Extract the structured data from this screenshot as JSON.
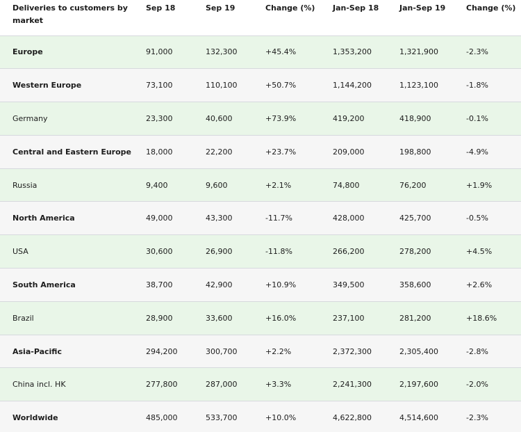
{
  "table": {
    "headers": [
      "Deliveries to customers by market",
      "Sep 18",
      "Sep 19",
      "Change (%)",
      "Jan-Sep 18",
      "Jan-Sep 19",
      "Change (%)"
    ],
    "rows": [
      {
        "market": "Europe",
        "bold": true,
        "cells": [
          "91,000",
          "132,300",
          "+45.4%",
          "1,353,200",
          "1,321,900",
          "-2.3%"
        ]
      },
      {
        "market": "Western Europe",
        "bold": true,
        "cells": [
          "73,100",
          "110,100",
          "+50.7%",
          "1,144,200",
          "1,123,100",
          "-1.8%"
        ]
      },
      {
        "market": "Germany",
        "bold": false,
        "cells": [
          "23,300",
          "40,600",
          "+73.9%",
          "419,200",
          "418,900",
          "-0.1%"
        ]
      },
      {
        "market": "Central and Eastern Europe",
        "bold": true,
        "cells": [
          "18,000",
          "22,200",
          "+23.7%",
          "209,000",
          "198,800",
          "-4.9%"
        ]
      },
      {
        "market": "Russia",
        "bold": false,
        "cells": [
          "9,400",
          "9,600",
          "+2.1%",
          "74,800",
          "76,200",
          "+1.9%"
        ]
      },
      {
        "market": "North America",
        "bold": true,
        "cells": [
          "49,000",
          "43,300",
          "-11.7%",
          "428,000",
          "425,700",
          "-0.5%"
        ]
      },
      {
        "market": "USA",
        "bold": false,
        "cells": [
          "30,600",
          "26,900",
          "-11.8%",
          "266,200",
          "278,200",
          "+4.5%"
        ]
      },
      {
        "market": "South America",
        "bold": true,
        "cells": [
          "38,700",
          "42,900",
          "+10.9%",
          "349,500",
          "358,600",
          "+2.6%"
        ]
      },
      {
        "market": "Brazil",
        "bold": false,
        "cells": [
          "28,900",
          "33,600",
          "+16.0%",
          "237,100",
          "281,200",
          "+18.6%"
        ]
      },
      {
        "market": "Asia-Pacific",
        "bold": true,
        "cells": [
          "294,200",
          "300,700",
          "+2.2%",
          "2,372,300",
          "2,305,400",
          "-2.8%"
        ]
      },
      {
        "market": "China incl. HK",
        "bold": false,
        "cells": [
          "277,800",
          "287,000",
          "+3.3%",
          "2,241,300",
          "2,197,600",
          "-2.0%"
        ]
      },
      {
        "market": "Worldwide",
        "bold": true,
        "cells": [
          "485,000",
          "533,700",
          "+10.0%",
          "4,622,800",
          "4,514,600",
          "-2.3%"
        ]
      }
    ]
  },
  "colors": {
    "row_highlight": "#e9f6e8",
    "row_alt": "#f6f6f6",
    "divider": "#d6d9dd"
  }
}
